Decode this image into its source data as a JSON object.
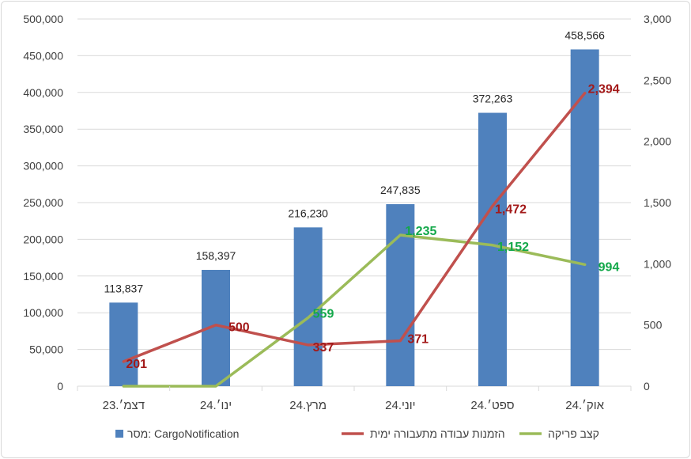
{
  "chart_data": {
    "type": "bar",
    "categories": [
      "דצמ׳.23",
      "ינו׳.24",
      "מרץ.24",
      "יוני.24",
      "ספט׳.24",
      "אוק׳.24"
    ],
    "series": [
      {
        "name": "מסר: CargoNotification",
        "type": "bar",
        "axis": "left",
        "color": "#4f81bd",
        "values": [
          113837,
          158397,
          216230,
          247835,
          372263,
          458566
        ],
        "labels": [
          "113,837",
          "158,397",
          "216,230",
          "247,835",
          "372,263",
          "458,566"
        ]
      },
      {
        "name": "הזמנות עבודה מתעבורה ימית",
        "type": "line",
        "axis": "right",
        "color": "#c0504d",
        "values": [
          201,
          500,
          337,
          371,
          1472,
          2394
        ],
        "labels": [
          "201",
          "500",
          "337",
          "371",
          "1,472",
          "2,394"
        ]
      },
      {
        "name": "קצב פריקה",
        "type": "line",
        "axis": "right",
        "color": "#9bbb59",
        "values": [
          0,
          0,
          559,
          1235,
          1152,
          994
        ],
        "labels": [
          "",
          "",
          "559",
          "1,235",
          "1,152",
          "994"
        ]
      }
    ],
    "y_left": {
      "min": 0,
      "max": 500000,
      "step": 50000,
      "tick_labels": [
        "0",
        "50,000",
        "100,000",
        "150,000",
        "200,000",
        "250,000",
        "300,000",
        "350,000",
        "400,000",
        "450,000",
        "500,000"
      ]
    },
    "y_right": {
      "min": 0,
      "max": 3000,
      "step": 500,
      "tick_labels": [
        "0",
        "500",
        "1,000",
        "1,500",
        "2,000",
        "2,500",
        "3,000"
      ]
    },
    "label_colors": {
      "red": "#a31a1a",
      "green": "#13a84a"
    },
    "grid": true,
    "legend_position": "bottom"
  }
}
